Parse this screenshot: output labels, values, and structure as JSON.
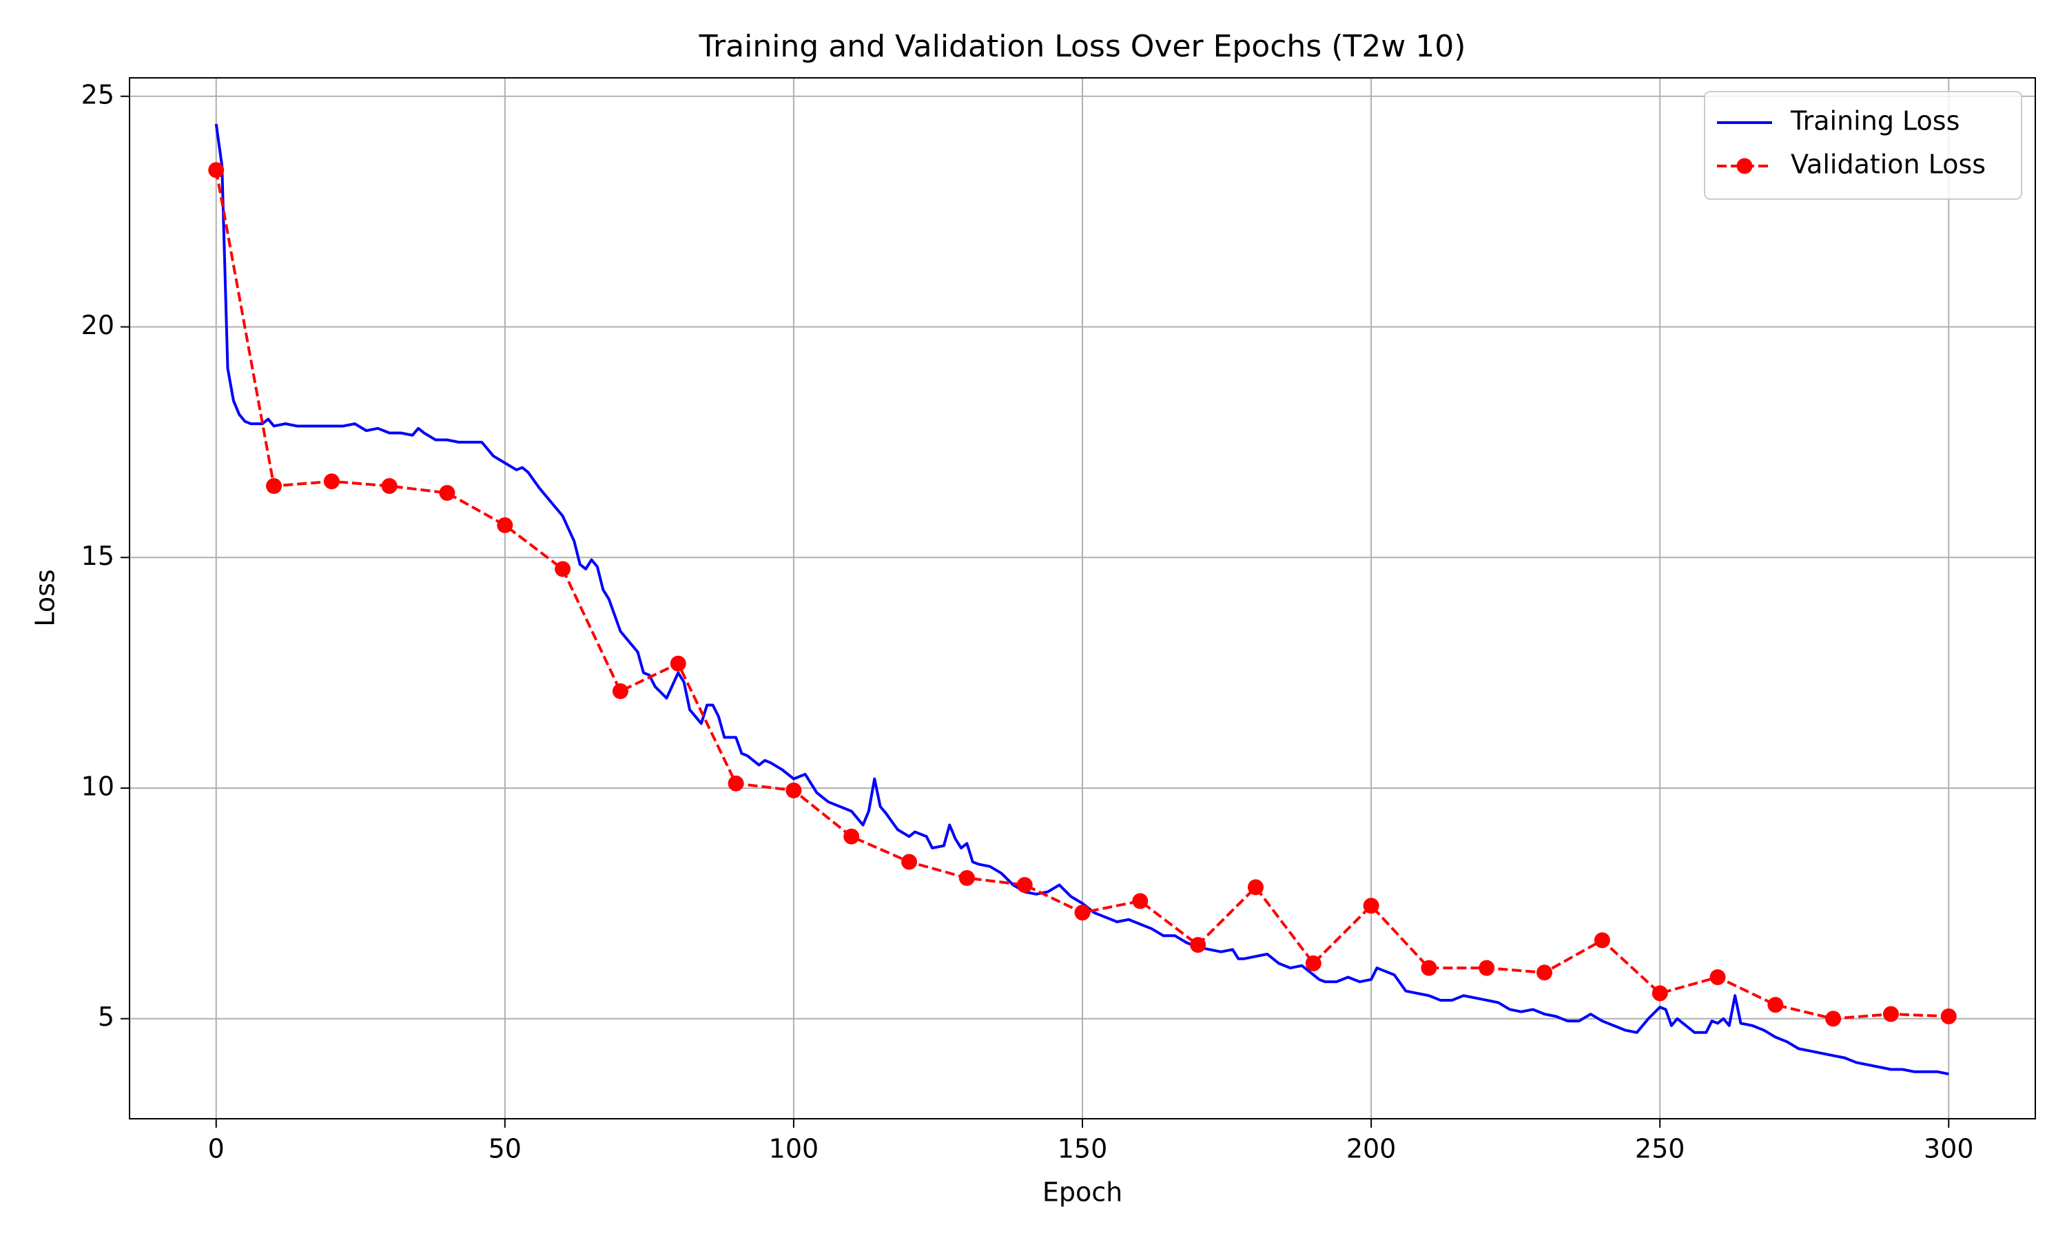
{
  "chart_data": {
    "type": "line",
    "title": "Training and Validation Loss Over Epochs (T2w 10)",
    "x_label": "Epoch",
    "y_label": "Loss",
    "xlim": [
      -15,
      315
    ],
    "ylim": [
      2.83,
      25.4
    ],
    "xticks": [
      0,
      50,
      100,
      150,
      200,
      250,
      300
    ],
    "yticks": [
      5,
      10,
      15,
      20,
      25
    ],
    "grid": true,
    "legend": "upper right",
    "series": [
      {
        "name": "Training Loss",
        "color": "#0000ff",
        "linestyle": "solid",
        "x": [
          0,
          1,
          2,
          3,
          4,
          5,
          6,
          8,
          9,
          10,
          12,
          14,
          16,
          18,
          20,
          22,
          24,
          26,
          28,
          30,
          32,
          34,
          35,
          36,
          38,
          40,
          42,
          44,
          46,
          48,
          50,
          52,
          53,
          54,
          56,
          58,
          60,
          62,
          63,
          64,
          65,
          66,
          67,
          68,
          70,
          72,
          73,
          74,
          75,
          76,
          78,
          80,
          81,
          82,
          84,
          85,
          86,
          87,
          88,
          90,
          91,
          92,
          94,
          95,
          96,
          98,
          100,
          102,
          104,
          106,
          108,
          110,
          112,
          113,
          114,
          115,
          116,
          118,
          120,
          121,
          123,
          124,
          126,
          127,
          128,
          129,
          130,
          131,
          132,
          134,
          136,
          138,
          140,
          142,
          144,
          146,
          148,
          150,
          152,
          154,
          156,
          158,
          160,
          162,
          164,
          166,
          168,
          170,
          172,
          174,
          176,
          177,
          178,
          180,
          182,
          184,
          186,
          188,
          190,
          191,
          192,
          194,
          196,
          198,
          200,
          201,
          202,
          204,
          206,
          208,
          210,
          212,
          214,
          216,
          218,
          220,
          222,
          224,
          226,
          228,
          230,
          232,
          234,
          236,
          238,
          240,
          242,
          244,
          246,
          248,
          250,
          251,
          252,
          253,
          254,
          256,
          258,
          259,
          260,
          261,
          262,
          263,
          264,
          266,
          268,
          270,
          272,
          274,
          276,
          278,
          280,
          282,
          284,
          286,
          288,
          290,
          292,
          294,
          296,
          298,
          300
        ],
        "values": [
          24.4,
          23.5,
          19.1,
          18.4,
          18.1,
          17.95,
          17.9,
          17.9,
          18.0,
          17.85,
          17.9,
          17.85,
          17.85,
          17.85,
          17.85,
          17.85,
          17.9,
          17.75,
          17.8,
          17.7,
          17.7,
          17.65,
          17.8,
          17.7,
          17.55,
          17.55,
          17.5,
          17.5,
          17.5,
          17.2,
          17.05,
          16.9,
          16.95,
          16.85,
          16.5,
          16.2,
          15.9,
          15.35,
          14.85,
          14.75,
          14.95,
          14.8,
          14.3,
          14.1,
          13.4,
          13.1,
          12.95,
          12.5,
          12.45,
          12.2,
          11.95,
          12.5,
          12.3,
          11.7,
          11.4,
          11.8,
          11.8,
          11.55,
          11.1,
          11.1,
          10.75,
          10.7,
          10.5,
          10.6,
          10.55,
          10.4,
          10.2,
          10.3,
          9.9,
          9.7,
          9.6,
          9.5,
          9.2,
          9.5,
          10.2,
          9.6,
          9.45,
          9.1,
          8.95,
          9.05,
          8.95,
          8.7,
          8.75,
          9.2,
          8.9,
          8.7,
          8.8,
          8.4,
          8.35,
          8.3,
          8.15,
          7.9,
          7.75,
          7.7,
          7.75,
          7.9,
          7.65,
          7.5,
          7.3,
          7.2,
          7.1,
          7.15,
          7.05,
          6.95,
          6.8,
          6.8,
          6.65,
          6.55,
          6.5,
          6.45,
          6.5,
          6.3,
          6.3,
          6.35,
          6.4,
          6.2,
          6.1,
          6.15,
          5.95,
          5.85,
          5.8,
          5.8,
          5.9,
          5.8,
          5.85,
          6.1,
          6.05,
          5.95,
          5.6,
          5.55,
          5.5,
          5.4,
          5.4,
          5.5,
          5.45,
          5.4,
          5.35,
          5.2,
          5.15,
          5.2,
          5.1,
          5.05,
          4.95,
          4.95,
          5.1,
          4.95,
          4.85,
          4.75,
          4.7,
          5.0,
          5.25,
          5.2,
          4.85,
          5.0,
          4.9,
          4.7,
          4.7,
          4.95,
          4.9,
          5.0,
          4.85,
          5.5,
          4.9,
          4.85,
          4.75,
          4.6,
          4.5,
          4.35,
          4.3,
          4.25,
          4.2,
          4.15,
          4.05,
          4.0,
          3.95,
          3.9,
          3.9,
          3.85,
          3.85,
          3.85,
          3.8
        ]
      },
      {
        "name": "Validation Loss",
        "color": "#ff0000",
        "linestyle": "dashed",
        "marker": "o",
        "x": [
          0,
          10,
          20,
          30,
          40,
          50,
          60,
          70,
          80,
          90,
          100,
          110,
          120,
          130,
          140,
          150,
          160,
          170,
          180,
          190,
          200,
          210,
          220,
          230,
          240,
          250,
          260,
          270,
          280,
          290,
          300
        ],
        "values": [
          23.4,
          16.55,
          16.65,
          16.55,
          16.4,
          15.7,
          14.75,
          12.1,
          12.7,
          10.1,
          9.95,
          8.95,
          8.4,
          8.05,
          7.9,
          7.3,
          7.55,
          6.6,
          7.85,
          6.2,
          7.45,
          6.1,
          6.1,
          6.0,
          6.7,
          5.55,
          5.9,
          5.3,
          5.0,
          5.1,
          5.05
        ]
      }
    ]
  }
}
